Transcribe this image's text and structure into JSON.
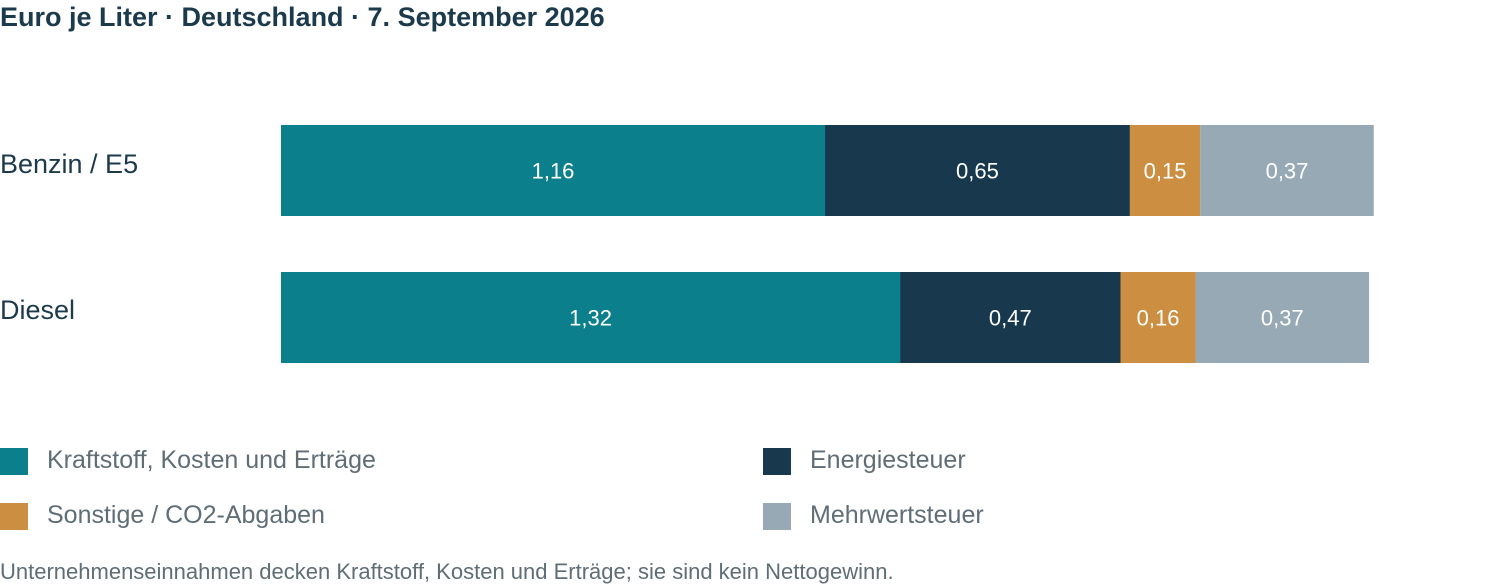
{
  "chart_data": {
    "type": "bar",
    "orientation": "horizontal",
    "stacked": true,
    "title": "Euro je Liter · Deutschland · 7. September 2026",
    "categories": [
      "Benzin / E5",
      "Diesel"
    ],
    "series": [
      {
        "name": "Kraftstoff, Kosten und Erträge",
        "color": "#0b7f8c",
        "values": [
          1.16,
          1.32
        ],
        "labels": [
          "1,16",
          "1,32"
        ]
      },
      {
        "name": "Energiesteuer",
        "color": "#17384d",
        "values": [
          0.65,
          0.47
        ],
        "labels": [
          "0,65",
          "0,47"
        ]
      },
      {
        "name": "Sonstige / CO2-Abgaben",
        "color": "#cc8e40",
        "values": [
          0.15,
          0.16
        ],
        "labels": [
          "0,15",
          "0,16"
        ]
      },
      {
        "name": "Mehrwertsteuer",
        "color": "#97a9b4",
        "values": [
          0.37,
          0.37
        ],
        "labels": [
          "0,37",
          "0,37"
        ]
      }
    ],
    "grid": false,
    "legend_position": "bottom",
    "footnote": "Unternehmenseinnahmen decken Kraftstoff, Kosten und Erträge; sie sind kein Nettogewinn."
  }
}
